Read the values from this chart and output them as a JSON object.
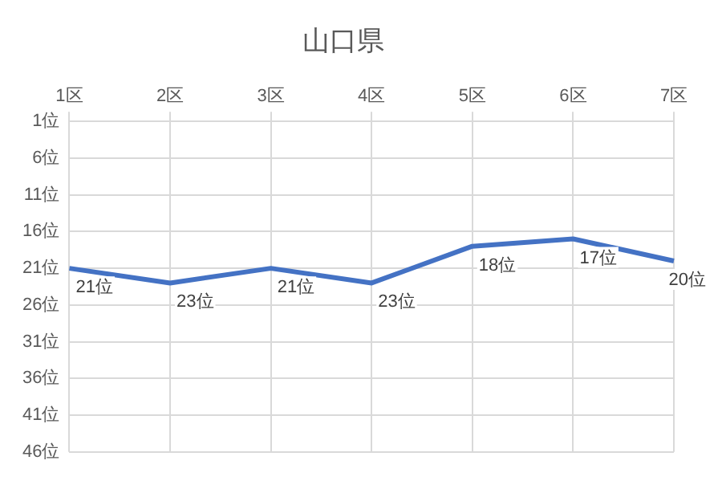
{
  "chart_data": {
    "type": "line",
    "title": "山口県",
    "categories": [
      "1区",
      "2区",
      "3区",
      "4区",
      "5区",
      "6区",
      "7区"
    ],
    "series": [
      {
        "color": "#4472c4",
        "values": [
          21,
          23,
          21,
          23,
          18,
          17,
          20
        ],
        "value_labels": [
          "21位",
          "23位",
          "21位",
          "23位",
          "18位",
          "17位",
          "20位"
        ]
      }
    ],
    "ylim": [
      46,
      1
    ],
    "yticks": [
      {
        "value": 1,
        "label": "1位"
      },
      {
        "value": 6,
        "label": "6位"
      },
      {
        "value": 11,
        "label": "11位"
      },
      {
        "value": 16,
        "label": "16位"
      },
      {
        "value": 21,
        "label": "21位"
      },
      {
        "value": 26,
        "label": "26位"
      },
      {
        "value": 31,
        "label": "31位"
      },
      {
        "value": 36,
        "label": "36位"
      },
      {
        "value": 41,
        "label": "41位"
      },
      {
        "value": 46,
        "label": "46位"
      }
    ],
    "grid": true,
    "marker": "none",
    "line_style": "solid"
  }
}
